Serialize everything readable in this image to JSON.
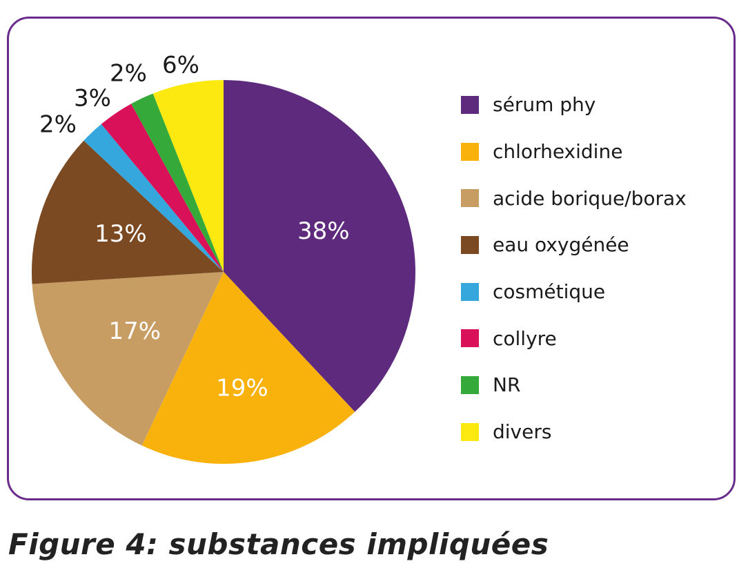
{
  "caption": "Figure 4: substances impliquées",
  "chart_data": {
    "type": "pie",
    "title": "",
    "slices": [
      {
        "name": "sérum phy",
        "value": 38,
        "label": "38%",
        "color": "#5e2a7e"
      },
      {
        "name": "chlorhexidine",
        "value": 19,
        "label": "19%",
        "color": "#f9b20b"
      },
      {
        "name": "acide borique/borax",
        "value": 17,
        "label": "17%",
        "color": "#c89d64"
      },
      {
        "name": "eau oxygénée",
        "value": 13,
        "label": "13%",
        "color": "#7b4a22"
      },
      {
        "name": "cosmétique",
        "value": 2,
        "label": "2%",
        "color": "#35a7dd"
      },
      {
        "name": "collyre",
        "value": 3,
        "label": "3%",
        "color": "#d81158"
      },
      {
        "name": "NR",
        "value": 2,
        "label": "2%",
        "color": "#35a93a"
      },
      {
        "name": "divers",
        "value": 6,
        "label": "6%",
        "color": "#fbe90f"
      }
    ],
    "legend_placement": "right"
  }
}
